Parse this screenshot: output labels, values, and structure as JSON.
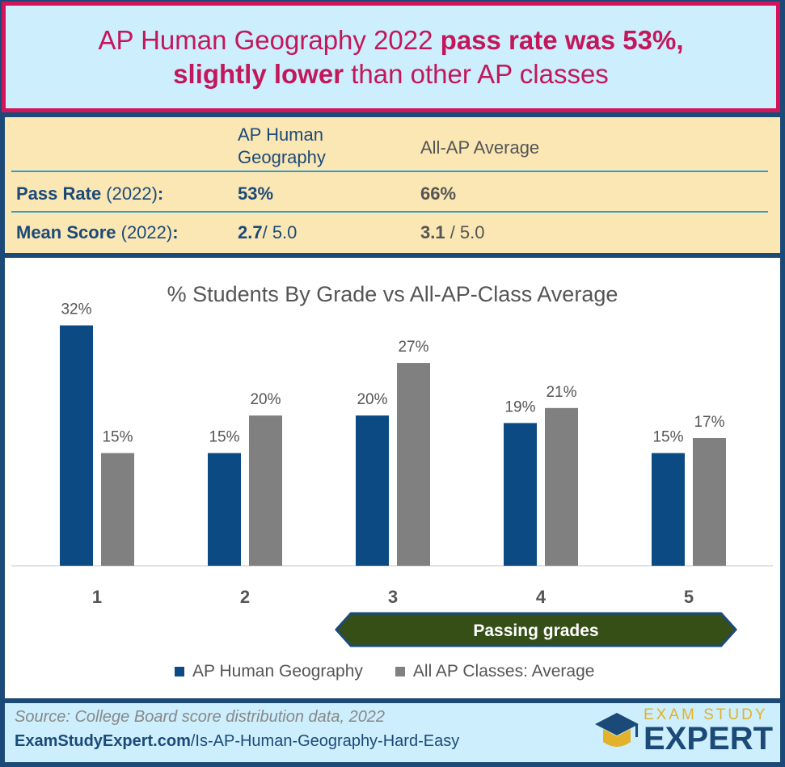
{
  "header": {
    "title_part1": "AP Human Geography 2022 ",
    "title_bold1": "pass rate was 53%,",
    "title_bold2": "slightly lower",
    "title_part2": " than other AP classes"
  },
  "stats": {
    "col_hg": "AP Human Geography",
    "col_hg_line1": "AP Human",
    "col_hg_line2": "Geography",
    "col_avg": "All-AP Average",
    "rows": [
      {
        "label_bold": "Pass Rate",
        "label_rest": " (2022)",
        "label_colon": ":",
        "hg_value": "53%",
        "hg_suffix": "",
        "avg_value": "66%",
        "avg_suffix": ""
      },
      {
        "label_bold": "Mean Score",
        "label_rest": " (2022)",
        "label_colon": ":",
        "hg_value": "2.7",
        "hg_suffix": "/ 5.0",
        "avg_value": "3.1",
        "avg_suffix": " / 5.0"
      }
    ]
  },
  "chart_data": {
    "type": "bar",
    "title": "% Students By Grade vs All-AP-Class Average",
    "categories": [
      "1",
      "2",
      "3",
      "4",
      "5"
    ],
    "series": [
      {
        "name": "AP Human Geography",
        "values": [
          32,
          15,
          20,
          19,
          15
        ],
        "labels": [
          "32%",
          "15%",
          "20%",
          "19%",
          "15%"
        ],
        "color": "#0b4a83"
      },
      {
        "name": "All AP Classes: Average",
        "values": [
          15,
          20,
          27,
          21,
          17
        ],
        "labels": [
          "15%",
          "20%",
          "27%",
          "21%",
          "17%"
        ],
        "color": "#808080"
      }
    ],
    "ylim": [
      0,
      34
    ],
    "grid": false,
    "legend": "bottom",
    "annotation": {
      "text": "Passing grades",
      "from_category": "3",
      "to_category": "5",
      "color": "#354f17"
    }
  },
  "footer": {
    "source": "Source: College Board score distribution data, 2022",
    "url_bold": "ExamStudyExpert.com",
    "url_rest": "/Is-AP-Human-Geography-Hard-Easy",
    "logo_top": "EXAM STUDY",
    "logo_main": "EXPERT"
  },
  "colors": {
    "accent_pink": "#d4145a",
    "navy": "#1b4a78",
    "header_bg": "#cdeefc",
    "stats_bg": "#fbe7b4",
    "gold": "#e2b22a"
  }
}
